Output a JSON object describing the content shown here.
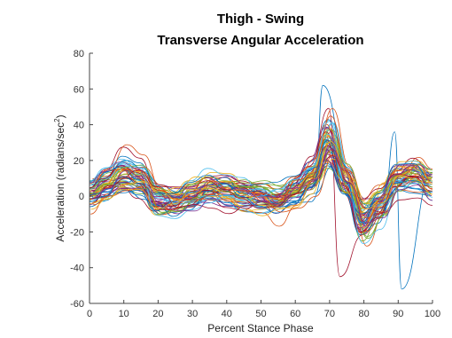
{
  "chart_data": {
    "type": "line",
    "title_line1": "Thigh - Swing",
    "title_line2": "Transverse Angular Acceleration",
    "xlabel": "Percent Stance Phase",
    "ylabel_main": "Acceleration (radians/sec",
    "ylabel_sup": "2",
    "ylabel_end": ")",
    "xlim": [
      0,
      100
    ],
    "ylim": [
      -60,
      80
    ],
    "xticks": [
      "0",
      "10",
      "20",
      "30",
      "40",
      "50",
      "60",
      "70",
      "80",
      "90",
      "100"
    ],
    "yticks": [
      "80",
      "60",
      "40",
      "20",
      "0",
      "-20",
      "-40",
      "-60"
    ],
    "grid": false,
    "x": [
      0,
      5,
      10,
      15,
      20,
      25,
      30,
      35,
      40,
      45,
      50,
      55,
      60,
      65,
      70,
      75,
      80,
      85,
      90,
      95,
      100
    ],
    "mean": [
      2,
      6,
      12,
      9,
      -2,
      -4,
      0,
      4,
      3,
      1,
      -1,
      -3,
      2,
      10,
      30,
      8,
      -14,
      -5,
      10,
      12,
      7
    ],
    "series_count": 60,
    "colors": [
      "#0072BD",
      "#D95319",
      "#EDB120",
      "#7E2F8E",
      "#77AC30",
      "#4DBEEE",
      "#A2142F"
    ]
  }
}
